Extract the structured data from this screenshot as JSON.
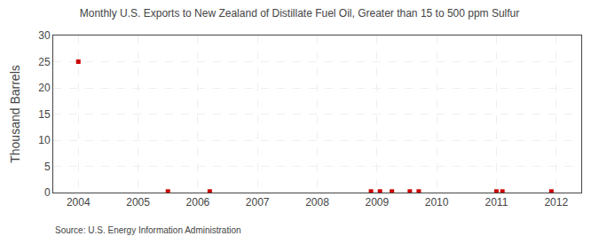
{
  "chart_data": {
    "type": "scatter",
    "title": "Monthly U.S. Exports to New Zealand of Distillate Fuel Oil, Greater than 15 to 500 ppm Sulfur",
    "ylabel": "Thousand Barrels",
    "annotations": [
      "Source: U.S. Energy Information Administration"
    ],
    "x": [
      2004.0,
      2005.5,
      2006.2,
      2008.9,
      2009.05,
      2009.25,
      2009.55,
      2009.7,
      2011.0,
      2011.1,
      2011.92
    ],
    "values": [
      25,
      0.2,
      0.2,
      0.2,
      0.2,
      0.2,
      0.2,
      0.2,
      0.2,
      0.2,
      0.2
    ],
    "color": "#cc0000",
    "marker": "square",
    "xlim": [
      2003.58,
      2012.42
    ],
    "ylim": [
      0,
      30
    ],
    "xticks": [
      2004,
      2005,
      2006,
      2007,
      2008,
      2009,
      2010,
      2011,
      2012
    ],
    "yticks": [
      0,
      5,
      10,
      15,
      20,
      25,
      30
    ],
    "grid": true
  }
}
